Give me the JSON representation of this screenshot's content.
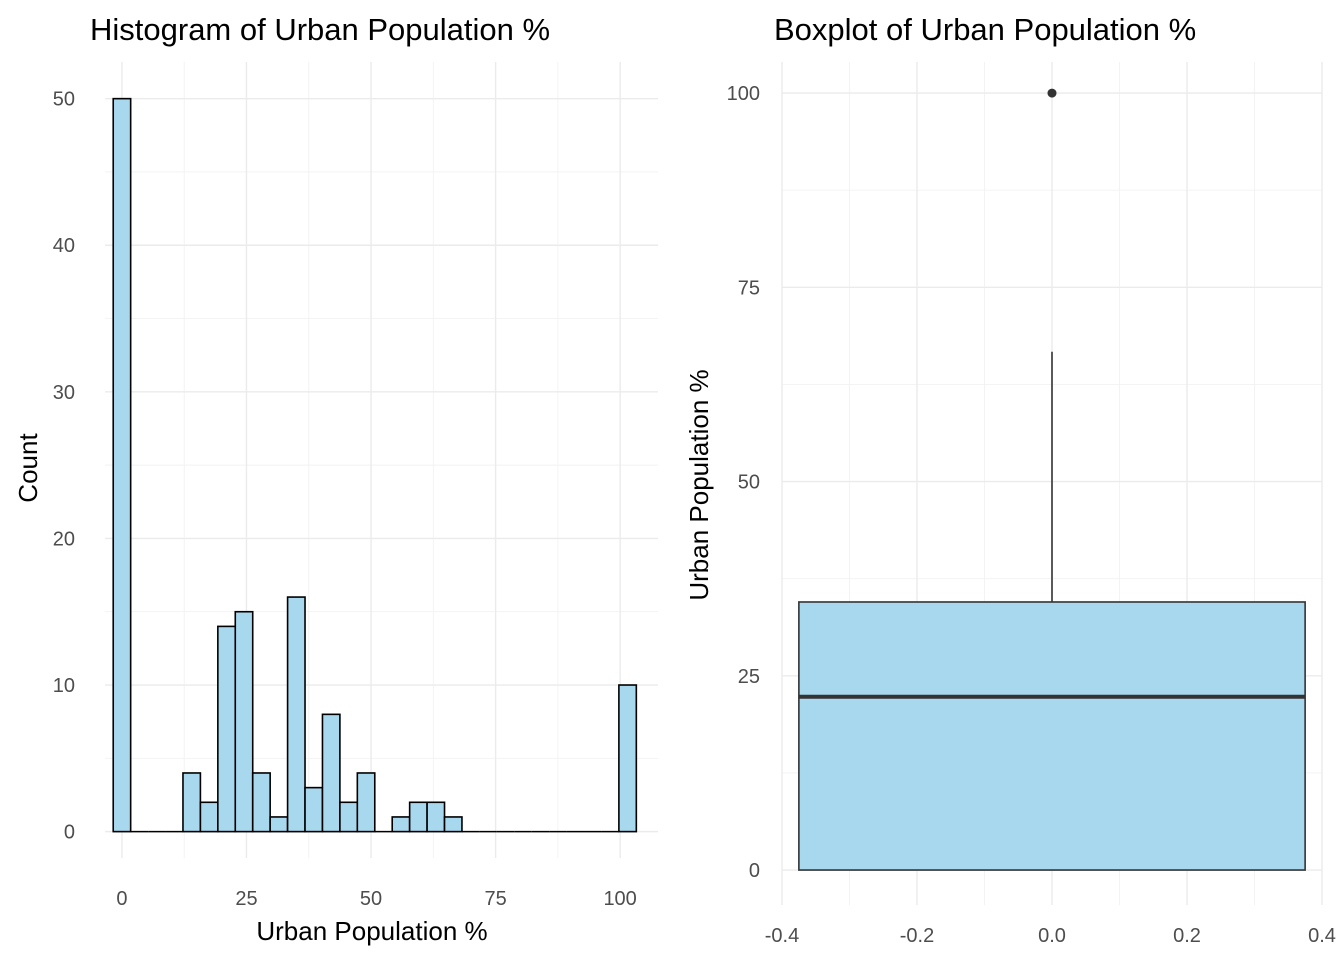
{
  "chart_data": [
    {
      "type": "bar",
      "subtype": "histogram",
      "title": "Histogram of Urban Population %",
      "xlabel": "Urban Population %",
      "ylabel": "Count",
      "bin_width": 3.5,
      "bins": [
        {
          "center": 0,
          "count": 50
        },
        {
          "center": 3.5,
          "count": 0
        },
        {
          "center": 7,
          "count": 0
        },
        {
          "center": 10.5,
          "count": 0
        },
        {
          "center": 14,
          "count": 4
        },
        {
          "center": 17.5,
          "count": 2
        },
        {
          "center": 21,
          "count": 14
        },
        {
          "center": 24.5,
          "count": 15
        },
        {
          "center": 28,
          "count": 4
        },
        {
          "center": 31.5,
          "count": 1
        },
        {
          "center": 35,
          "count": 16
        },
        {
          "center": 38.5,
          "count": 3
        },
        {
          "center": 42,
          "count": 8
        },
        {
          "center": 45.5,
          "count": 2
        },
        {
          "center": 49,
          "count": 4
        },
        {
          "center": 52.5,
          "count": 0
        },
        {
          "center": 56,
          "count": 1
        },
        {
          "center": 59.5,
          "count": 2
        },
        {
          "center": 63,
          "count": 2
        },
        {
          "center": 66.5,
          "count": 1
        },
        {
          "center": 70,
          "count": 0
        },
        {
          "center": 73.5,
          "count": 0
        },
        {
          "center": 77,
          "count": 0
        },
        {
          "center": 80.5,
          "count": 0
        },
        {
          "center": 84,
          "count": 0
        },
        {
          "center": 87.5,
          "count": 0
        },
        {
          "center": 91,
          "count": 0
        },
        {
          "center": 94.5,
          "count": 0
        },
        {
          "center": 98,
          "count": 0
        },
        {
          "center": 101.5,
          "count": 10
        }
      ],
      "xlim": [
        -3.4,
        107.6
      ],
      "ylim": [
        -1.8,
        52.5
      ],
      "xticks": [
        0,
        25,
        50,
        75,
        100
      ],
      "yticks": [
        0,
        10,
        20,
        30,
        40,
        50
      ],
      "grid": true,
      "fill_color": "#a8d8ee",
      "edge_color": "#000000"
    },
    {
      "type": "boxplot",
      "title": "Boxplot of Urban Population %",
      "xlabel": "",
      "ylabel": "Urban Population %",
      "box": {
        "x": 0,
        "width": 0.75,
        "min": 0,
        "q1": 0,
        "median": 22.3,
        "q3": 34.5,
        "max": 66.7,
        "outliers": [
          100
        ]
      },
      "xlim": [
        -0.4,
        0.4
      ],
      "ylim": [
        -4.5,
        104
      ],
      "xticks": [
        -0.4,
        -0.2,
        0.0,
        0.2,
        0.4
      ],
      "xtick_labels": [
        "-0.4",
        "-0.2",
        "0.0",
        "0.2",
        "0.4"
      ],
      "yticks": [
        0,
        25,
        50,
        75,
        100
      ],
      "grid": true,
      "fill_color": "#a8d8ee",
      "edge_color": "#333333"
    }
  ]
}
